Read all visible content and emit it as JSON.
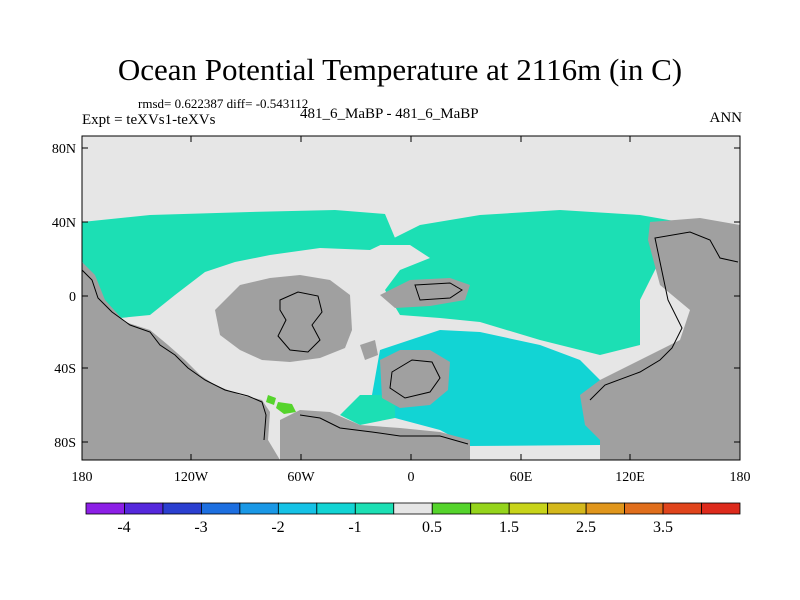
{
  "header": {
    "title": "Ocean Potential Temperature at 2116m (in C)",
    "stats": "rmsd= 0.622387 diff= -0.543112",
    "experiment": "Expt = teXVs1-teXVs",
    "subtitle": "481_6_MaBP - 481_6_MaBP",
    "season": "ANN"
  },
  "axes": {
    "lat_labels": [
      "80N",
      "40N",
      "0",
      "40S",
      "80S"
    ],
    "lon_labels": [
      "180",
      "120W",
      "60W",
      "0",
      "60E",
      "120E",
      "180"
    ]
  },
  "colorbar": {
    "labels": [
      "-4",
      "-3",
      "-2",
      "-1",
      "0.5",
      "1.5",
      "2.5",
      "3.5"
    ],
    "colors": [
      "#8c1fe6",
      "#5528dc",
      "#2b3fd0",
      "#1d6fe0",
      "#1a98e6",
      "#15c2e6",
      "#12d4d4",
      "#1cdfb4",
      "#e6e6e6",
      "#55d42c",
      "#95d41c",
      "#c8d41a",
      "#d4b81c",
      "#e0961c",
      "#e06e1c",
      "#e0441c",
      "#dd2a1c"
    ]
  },
  "colors": {
    "land": "#a0a0a0",
    "near_zero": "#e6e6e6",
    "diff_minus1": "#1cdfb4",
    "diff_minus1_5": "#12d4d4",
    "diff_plus0_5": "#55d42c"
  }
}
